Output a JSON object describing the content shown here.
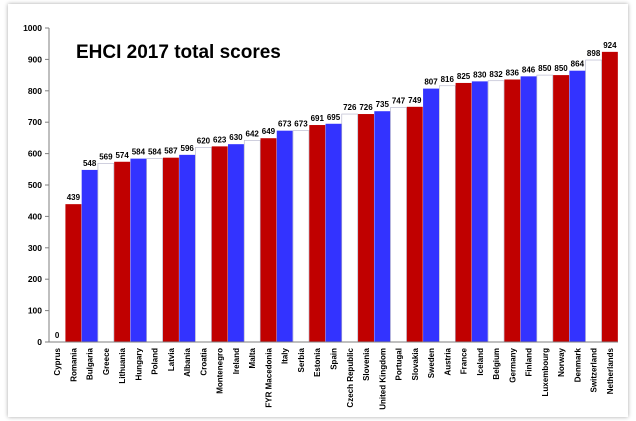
{
  "chart_data": {
    "type": "bar",
    "title": "EHCI 2017 total scores",
    "xlabel": "",
    "ylabel": "",
    "ylim": [
      0,
      1000
    ],
    "yticks": [
      0,
      100,
      200,
      300,
      400,
      500,
      600,
      700,
      800,
      900,
      1000
    ],
    "grid": false,
    "legend": "none",
    "categories": [
      "Cyprus",
      "Romania",
      "Bulgaria",
      "Greece",
      "Lithuania",
      "Hungary",
      "Poland",
      "Latvia",
      "Albania",
      "Croatia",
      "Montenegro",
      "Ireland",
      "Malta",
      "FYR Macedonia",
      "Italy",
      "Serbia",
      "Estonia",
      "Spain",
      "Czech Republic",
      "Slovenia",
      "United Kingdom",
      "Portugal",
      "Slovakia",
      "Sweden",
      "Austria",
      "France",
      "Iceland",
      "Belgium",
      "Germany",
      "Finland",
      "Luxembourg",
      "Norway",
      "Denmark",
      "Switzerland",
      "Netherlands"
    ],
    "values": [
      0,
      439,
      548,
      569,
      574,
      584,
      584,
      587,
      596,
      620,
      623,
      630,
      642,
      649,
      673,
      673,
      691,
      695,
      726,
      726,
      735,
      747,
      749,
      807,
      816,
      825,
      830,
      832,
      836,
      846,
      850,
      850,
      864,
      898,
      924
    ],
    "bar_colors": [
      "#ffffff",
      "#c00000",
      "#3333ff",
      "#ffffff",
      "#c00000",
      "#3333ff",
      "#ffffff",
      "#c00000",
      "#3333ff",
      "#ffffff",
      "#c00000",
      "#3333ff",
      "#ffffff",
      "#c00000",
      "#3333ff",
      "#ffffff",
      "#c00000",
      "#3333ff",
      "#ffffff",
      "#c00000",
      "#3333ff",
      "#ffffff",
      "#c00000",
      "#3333ff",
      "#ffffff",
      "#c00000",
      "#3333ff",
      "#ffffff",
      "#c00000",
      "#3333ff",
      "#ffffff",
      "#c00000",
      "#3333ff",
      "#ffffff",
      "#c00000"
    ]
  }
}
